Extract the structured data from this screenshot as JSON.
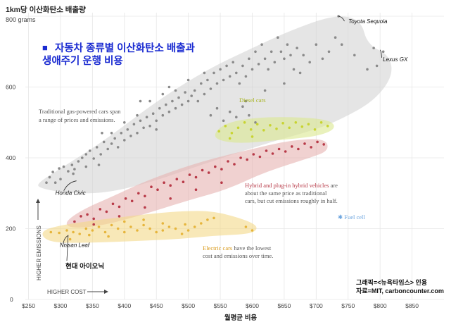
{
  "chart_data": {
    "type": "scatter",
    "title": "자동차 종류별 이산화탄소 배출과 생애주기 운행 비용",
    "title_marker": "■",
    "ylabel": "1km당 이산화탄소 배출량",
    "y_unit_label": "800 grams",
    "xlabel": "월평균 비용",
    "higher_emissions_label": "HIGHER EMISSIONS",
    "higher_cost_label": "HIGHER COST",
    "xlim": [
      245,
      900
    ],
    "ylim": [
      0,
      810
    ],
    "x_ticks": [
      250,
      300,
      350,
      400,
      450,
      500,
      550,
      600,
      650,
      700,
      750,
      800,
      850
    ],
    "x_tick_labels": [
      "$250",
      "$300",
      "$350",
      "$400",
      "$450",
      "$500",
      "$550",
      "$600",
      "$650",
      "$700",
      "$750",
      "$800",
      "$850"
    ],
    "y_ticks": [
      200,
      400,
      600
    ],
    "y_tick_labels": [
      "200",
      "400",
      "600"
    ],
    "y_top_tick_label": "0",
    "grid": true,
    "series": [
      {
        "name": "Traditional gas-powered cars",
        "color": "#8a8a8a",
        "region_color": "#d4d4d4",
        "annotation": [
          "Traditional gas-powered cars span",
          "a range of prices and emissions."
        ],
        "points": [
          [
            278,
            330
          ],
          [
            283,
            345
          ],
          [
            288,
            360
          ],
          [
            292,
            330
          ],
          [
            298,
            370
          ],
          [
            305,
            375
          ],
          [
            312,
            362
          ],
          [
            318,
            380
          ],
          [
            322,
            368
          ],
          [
            328,
            390
          ],
          [
            334,
            400
          ],
          [
            340,
            410
          ],
          [
            346,
            420
          ],
          [
            352,
            398
          ],
          [
            357,
            430
          ],
          [
            363,
            410
          ],
          [
            368,
            445
          ],
          [
            374,
            425
          ],
          [
            380,
            440
          ],
          [
            385,
            455
          ],
          [
            390,
            430
          ],
          [
            395,
            470
          ],
          [
            400,
            450
          ],
          [
            405,
            480
          ],
          [
            410,
            462
          ],
          [
            415,
            495
          ],
          [
            420,
            470
          ],
          [
            425,
            505
          ],
          [
            430,
            485
          ],
          [
            435,
            515
          ],
          [
            440,
            490
          ],
          [
            445,
            525
          ],
          [
            450,
            505
          ],
          [
            455,
            540
          ],
          [
            460,
            520
          ],
          [
            465,
            550
          ],
          [
            470,
            530
          ],
          [
            475,
            560
          ],
          [
            480,
            540
          ],
          [
            485,
            570
          ],
          [
            490,
            550
          ],
          [
            495,
            585
          ],
          [
            500,
            560
          ],
          [
            505,
            575
          ],
          [
            510,
            590
          ],
          [
            515,
            560
          ],
          [
            520,
            610
          ],
          [
            525,
            580
          ],
          [
            530,
            620
          ],
          [
            535,
            595
          ],
          [
            540,
            640
          ],
          [
            545,
            610
          ],
          [
            550,
            650
          ],
          [
            555,
            620
          ],
          [
            560,
            660
          ],
          [
            565,
            630
          ],
          [
            570,
            670
          ],
          [
            575,
            640
          ],
          [
            580,
            610
          ],
          [
            585,
            660
          ],
          [
            590,
            630
          ],
          [
            595,
            680
          ],
          [
            600,
            650
          ],
          [
            605,
            700
          ],
          [
            610,
            665
          ],
          [
            615,
            720
          ],
          [
            620,
            680
          ],
          [
            625,
            650
          ],
          [
            630,
            700
          ],
          [
            635,
            670
          ],
          [
            640,
            740
          ],
          [
            645,
            700
          ],
          [
            650,
            680
          ],
          [
            655,
            720
          ],
          [
            660,
            690
          ],
          [
            665,
            650
          ],
          [
            670,
            710
          ],
          [
            675,
            640
          ],
          [
            680,
            690
          ],
          [
            690,
            670
          ],
          [
            700,
            720
          ],
          [
            710,
            680
          ],
          [
            720,
            700
          ],
          [
            730,
            740
          ],
          [
            740,
            720
          ],
          [
            760,
            690
          ],
          [
            780,
            650
          ],
          [
            795,
            660
          ],
          [
            805,
            700
          ],
          [
            535,
            520
          ],
          [
            545,
            540
          ],
          [
            555,
            505
          ],
          [
            565,
            530
          ],
          [
            575,
            515
          ],
          [
            585,
            545
          ],
          [
            595,
            520
          ],
          [
            605,
            500
          ],
          [
            380,
            470
          ],
          [
            400,
            500
          ],
          [
            420,
            520
          ],
          [
            440,
            560
          ],
          [
            460,
            580
          ],
          [
            480,
            590
          ],
          [
            360,
            380
          ],
          [
            340,
            375
          ],
          [
            320,
            355
          ],
          [
            300,
            340
          ],
          [
            470,
            600
          ],
          [
            500,
            620
          ],
          [
            525,
            640
          ],
          [
            590,
            560
          ],
          [
            620,
            590
          ],
          [
            650,
            610
          ],
          [
            735,
            800
          ],
          [
            790,
            710
          ],
          [
            365,
            470
          ],
          [
            425,
            560
          ],
          [
            450,
            480
          ]
        ],
        "labels": [
          {
            "text": "Toyota Sequoia",
            "x": 735,
            "y": 800
          },
          {
            "text": "Lexus GX",
            "x": 800,
            "y": 705
          },
          {
            "text": "Honda Civic",
            "x": 325,
            "y": 335
          }
        ]
      },
      {
        "name": "Diesel cars",
        "color": "#c8d431",
        "region_color": "#dbe78f",
        "points": [
          [
            548,
            475
          ],
          [
            558,
            490
          ],
          [
            568,
            470
          ],
          [
            578,
            485
          ],
          [
            588,
            500
          ],
          [
            598,
            480
          ],
          [
            608,
            495
          ],
          [
            618,
            478
          ],
          [
            628,
            492
          ],
          [
            638,
            482
          ],
          [
            648,
            498
          ],
          [
            658,
            485
          ],
          [
            668,
            500
          ],
          [
            678,
            488
          ],
          [
            688,
            495
          ],
          [
            698,
            480
          ],
          [
            708,
            500
          ],
          [
            718,
            490
          ],
          [
            565,
            455
          ],
          [
            600,
            460
          ]
        ]
      },
      {
        "name": "Hybrid and plug-in hybrid vehicles",
        "color": "#b83a48",
        "region_color": "#e6b3b0",
        "annotation": [
          "Hybrid and plug-in hybrid vehicles are",
          "about the same price as traditional",
          "cars, but cut emissions roughly in half."
        ],
        "points": [
          [
            322,
            220
          ],
          [
            332,
            235
          ],
          [
            342,
            240
          ],
          [
            352,
            228
          ],
          [
            362,
            255
          ],
          [
            372,
            248
          ],
          [
            382,
            270
          ],
          [
            392,
            262
          ],
          [
            402,
            285
          ],
          [
            412,
            278
          ],
          [
            422,
            300
          ],
          [
            432,
            292
          ],
          [
            442,
            318
          ],
          [
            452,
            310
          ],
          [
            462,
            330
          ],
          [
            472,
            322
          ],
          [
            482,
            340
          ],
          [
            492,
            332
          ],
          [
            502,
            352
          ],
          [
            512,
            345
          ],
          [
            522,
            365
          ],
          [
            532,
            358
          ],
          [
            542,
            375
          ],
          [
            552,
            368
          ],
          [
            562,
            390
          ],
          [
            572,
            382
          ],
          [
            582,
            400
          ],
          [
            592,
            395
          ],
          [
            602,
            410
          ],
          [
            612,
            403
          ],
          [
            622,
            420
          ],
          [
            632,
            412
          ],
          [
            642,
            425
          ],
          [
            652,
            418
          ],
          [
            662,
            432
          ],
          [
            672,
            425
          ],
          [
            682,
            440
          ],
          [
            692,
            430
          ],
          [
            702,
            445
          ],
          [
            712,
            438
          ],
          [
            352,
            212
          ],
          [
            392,
            235
          ],
          [
            432,
            260
          ],
          [
            472,
            285
          ],
          [
            512,
            310
          ],
          [
            552,
            330
          ]
        ]
      },
      {
        "name": "Electric cars",
        "color": "#e6b53c",
        "region_color": "#f4d889",
        "annotation": [
          "Electric cars have the lowest",
          "cost and emissions over time."
        ],
        "points": [
          [
            285,
            190
          ],
          [
            298,
            188
          ],
          [
            310,
            195
          ],
          [
            320,
            190
          ],
          [
            330,
            185
          ],
          [
            340,
            200
          ],
          [
            350,
            195
          ],
          [
            360,
            205
          ],
          [
            370,
            190
          ],
          [
            380,
            210
          ],
          [
            390,
            200
          ],
          [
            400,
            190
          ],
          [
            410,
            205
          ],
          [
            420,
            195
          ],
          [
            430,
            210
          ],
          [
            440,
            200
          ],
          [
            450,
            190
          ],
          [
            460,
            195
          ],
          [
            470,
            205
          ],
          [
            480,
            200
          ],
          [
            490,
            185
          ],
          [
            500,
            195
          ],
          [
            510,
            205
          ],
          [
            520,
            215
          ],
          [
            530,
            225
          ],
          [
            540,
            230
          ],
          [
            400,
            220
          ],
          [
            430,
            225
          ],
          [
            460,
            215
          ],
          [
            590,
            205
          ],
          [
            600,
            195
          ],
          [
            315,
            170
          ],
          [
            345,
            182
          ],
          [
            375,
            178
          ],
          [
            495,
            212
          ]
        ],
        "labels": [
          {
            "text": "Nissan Leaf",
            "x": 312,
            "y": 180
          }
        ]
      },
      {
        "name": "Fuel cell",
        "color": "#6ba4de",
        "points": [
          [
            715,
            238
          ]
        ]
      }
    ],
    "annotations": [
      {
        "text": "현대 아이오닉",
        "x": 312,
        "y": 160
      }
    ]
  },
  "credit": {
    "graphic": "그래픽=<뉴욕타임스> 인용",
    "source": "자료=MIT, carboncounter.com"
  }
}
